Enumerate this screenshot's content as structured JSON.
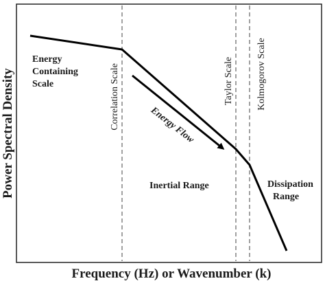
{
  "axes": {
    "xlabel": "Frequency (Hz) or Wavenumber (k)",
    "ylabel": "Power Spectral Density"
  },
  "scales": {
    "correlation": "Correlation Scale",
    "taylor": "Taylor Scale",
    "kolmogorov": "Kolmogorov Scale"
  },
  "regions": {
    "energy_containing": [
      "Energy",
      "Containing",
      "Scale"
    ],
    "inertial": "Inertial Range",
    "dissipation": [
      "Dissipation",
      "Range"
    ]
  },
  "energy_flow": "Energy Flow",
  "colors": {
    "curve": "#000000",
    "dashed": "#888888",
    "frame": "#222222",
    "text": "#1a1a1a"
  }
}
